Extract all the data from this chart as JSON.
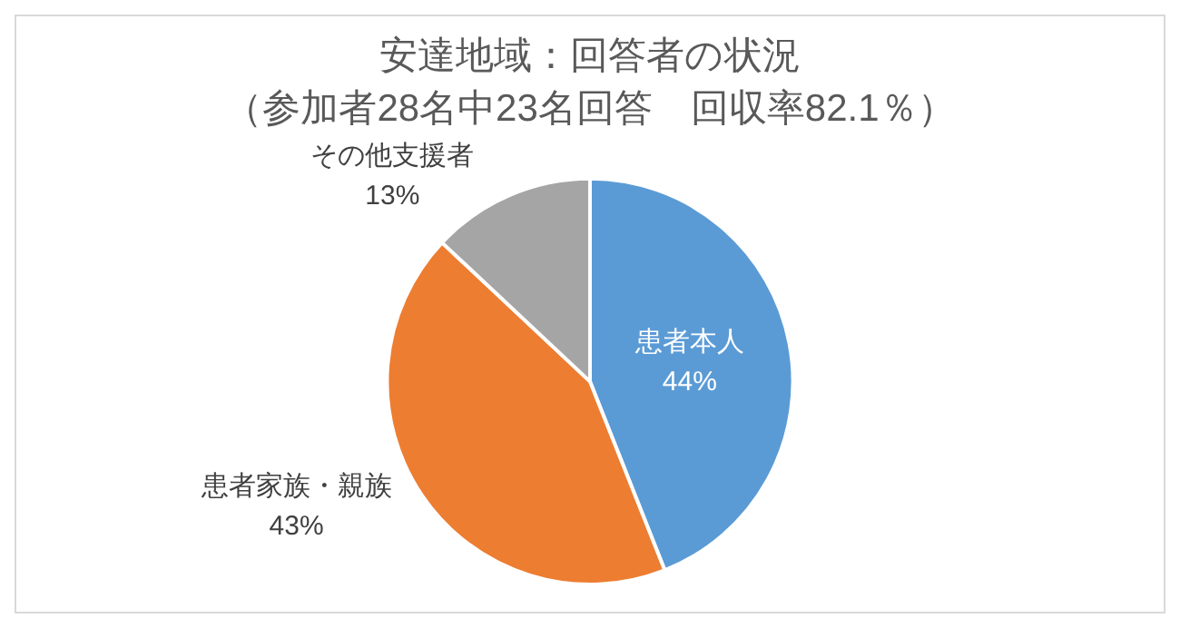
{
  "chart_data": {
    "type": "pie",
    "title": "安達地域：回答者の状況",
    "subtitle": "（参加者28名中23名回答　回収率82.1％）",
    "categories": [
      "患者本人",
      "患者家族・親族",
      "その他支援者"
    ],
    "values": [
      44,
      43,
      13
    ],
    "colors": [
      "#5b9bd5",
      "#ed7d31",
      "#a5a5a5"
    ],
    "value_labels": [
      "44%",
      "43%",
      "13%"
    ],
    "legend": false
  }
}
